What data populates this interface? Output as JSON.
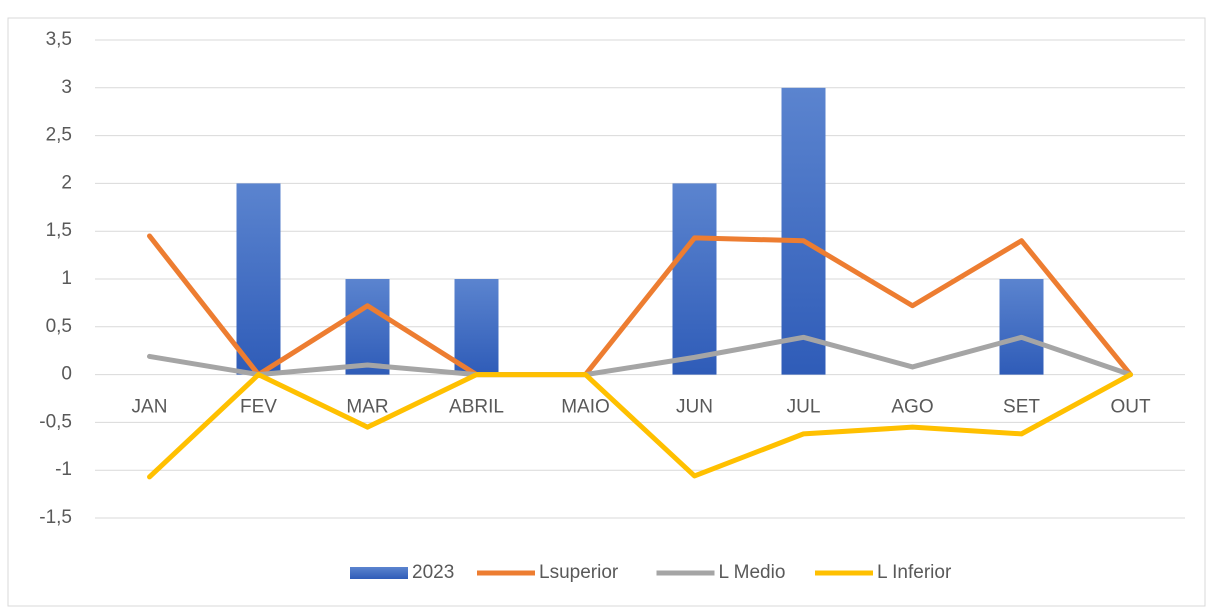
{
  "chart_data": {
    "type": "bar",
    "categories": [
      "JAN",
      "FEV",
      "MAR",
      "ABRIL",
      "MAIO",
      "JUN",
      "JUL",
      "AGO",
      "SET",
      "OUT"
    ],
    "series": [
      {
        "name": "2023",
        "type": "bar",
        "color": "#4472c4",
        "values": [
          0,
          2,
          1,
          1,
          0,
          2,
          3,
          0,
          1,
          0
        ]
      },
      {
        "name": "Lsuperior",
        "type": "line",
        "color": "#ed7d31",
        "values": [
          1.45,
          0,
          0.72,
          0,
          0,
          1.43,
          1.4,
          0.72,
          1.4,
          0
        ]
      },
      {
        "name": "L Medio",
        "type": "line",
        "color": "#a5a5a5",
        "values": [
          0.19,
          0,
          0.1,
          0,
          0,
          0.18,
          0.39,
          0.08,
          0.39,
          0
        ]
      },
      {
        "name": "L Inferior",
        "type": "line",
        "color": "#ffc000",
        "values": [
          -1.07,
          0,
          -0.55,
          0,
          0,
          -1.06,
          -0.62,
          -0.55,
          -0.62,
          0
        ]
      }
    ],
    "ylim": [
      -1.5,
      3.5
    ],
    "yticks": [
      {
        "value": 3.5,
        "label": "3,5"
      },
      3,
      {
        "value": 2.5,
        "label": "2,5"
      },
      2,
      {
        "value": 1.5,
        "label": "1,5"
      },
      1,
      {
        "value": 0.5,
        "label": "0,5"
      },
      0,
      {
        "value": -0.5,
        "label": "-0,5"
      },
      -1,
      {
        "value": -1.5,
        "label": "-1,5"
      }
    ],
    "grid": true,
    "legend": "bottom"
  }
}
